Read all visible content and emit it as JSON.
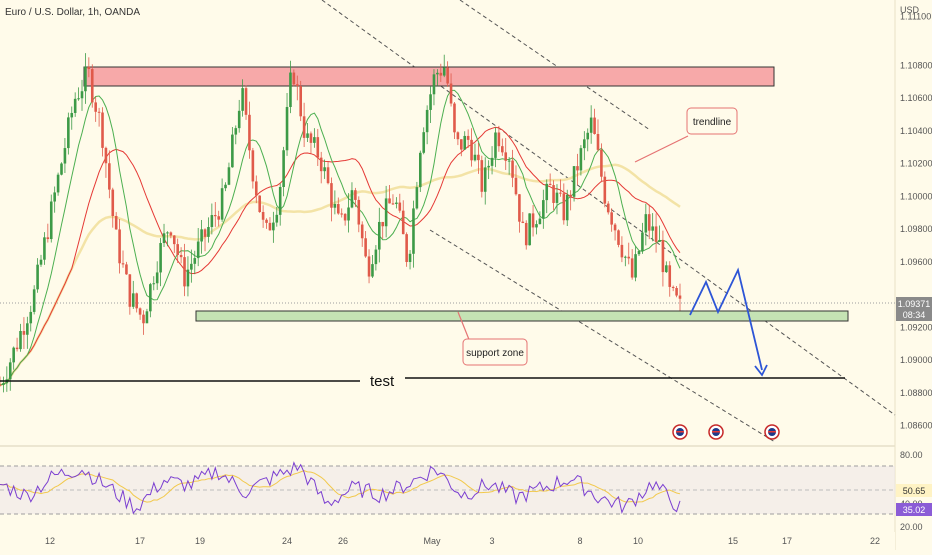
{
  "header": {
    "symbol_title": "Euro / U.S. Dollar, 1h, OANDA",
    "currency": "USD"
  },
  "colors": {
    "background": "#fffbea",
    "bull_candle": "#3d9a47",
    "bear_candle": "#e05a4a",
    "resistance_zone": "#f7a9a9",
    "support_zone": "#c5e3b4",
    "ma_fast": "#4caf50",
    "ma_mid": "#e53935",
    "ma_slow": "#f3e3a6",
    "rsi_line": "#7b3fd1",
    "rsi_signal": "#f2c94c",
    "projection": "#2d55d6",
    "annotation_border": "#e57373",
    "price_badge": "#8a8a8a"
  },
  "price_axis": {
    "ticks": [
      "1.11100",
      "1.10800",
      "1.10600",
      "1.10400",
      "1.10200",
      "1.10000",
      "1.09800",
      "1.09600",
      "1.09200",
      "1.09000",
      "1.08800",
      "1.08600"
    ],
    "current_price": "1.09371",
    "countdown": "08:34"
  },
  "rsi_axis": {
    "ticks": [
      "80.00",
      "40.00",
      "20.00"
    ],
    "value_1": "50.65",
    "value_2": "35.02"
  },
  "time_axis": {
    "ticks": [
      "12",
      "17",
      "19",
      "24",
      "26",
      "May",
      "3",
      "8",
      "10",
      "15",
      "17",
      "22"
    ]
  },
  "annotations": {
    "trendline_label": "trendline",
    "support_label": "support zone",
    "test_label": "test"
  },
  "chart_data": {
    "type": "candlestick",
    "title": "Euro / U.S. Dollar, 1h, OANDA",
    "ylabel": "USD",
    "ylim": [
      1.085,
      1.112
    ],
    "resistance_zone": [
      1.1079,
      1.1092
    ],
    "support_zone": [
      1.0925,
      1.0931
    ],
    "test_level": 1.0889,
    "current_price": 1.09371,
    "price_path": [
      [
        0,
        1.0885
      ],
      [
        0.02,
        1.0905
      ],
      [
        0.05,
        1.094
      ],
      [
        0.08,
        1.1
      ],
      [
        0.11,
        1.106
      ],
      [
        0.13,
        1.1075
      ],
      [
        0.15,
        1.104
      ],
      [
        0.17,
        1.0975
      ],
      [
        0.19,
        1.094
      ],
      [
        0.21,
        1.0925
      ],
      [
        0.23,
        1.096
      ],
      [
        0.25,
        1.0985
      ],
      [
        0.27,
        1.095
      ],
      [
        0.3,
        1.0975
      ],
      [
        0.33,
        1.1
      ],
      [
        0.355,
        1.1065
      ],
      [
        0.37,
        1.102
      ],
      [
        0.39,
        1.0975
      ],
      [
        0.41,
        1.1
      ],
      [
        0.43,
        1.108
      ],
      [
        0.45,
        1.1035
      ],
      [
        0.47,
        1.1025
      ],
      [
        0.5,
        1.098
      ],
      [
        0.52,
        1.1005
      ],
      [
        0.54,
        1.0955
      ],
      [
        0.56,
        1.0985
      ],
      [
        0.58,
        1.1
      ],
      [
        0.6,
        1.096
      ],
      [
        0.62,
        1.104
      ],
      [
        0.64,
        1.1075
      ],
      [
        0.655,
        1.108
      ],
      [
        0.67,
        1.103
      ],
      [
        0.69,
        1.1035
      ],
      [
        0.71,
        1.1005
      ],
      [
        0.73,
        1.104
      ],
      [
        0.75,
        1.1025
      ],
      [
        0.77,
        1.0975
      ],
      [
        0.79,
        1.099
      ],
      [
        0.81,
        1.1005
      ],
      [
        0.83,
        1.099
      ],
      [
        0.85,
        1.102
      ],
      [
        0.87,
        1.1045
      ],
      [
        0.89,
        1.1
      ],
      [
        0.91,
        1.0975
      ],
      [
        0.93,
        1.095
      ],
      [
        0.95,
        1.0985
      ],
      [
        0.97,
        1.097
      ],
      [
        0.985,
        1.094
      ],
      [
        1.0,
        1.0932
      ]
    ],
    "rsi_ylim": [
      20,
      80
    ],
    "rsi_levels": [
      70,
      50,
      30
    ],
    "rsi_path": [
      [
        0,
        55
      ],
      [
        0.04,
        45
      ],
      [
        0.08,
        62
      ],
      [
        0.12,
        68
      ],
      [
        0.16,
        52
      ],
      [
        0.2,
        35
      ],
      [
        0.24,
        58
      ],
      [
        0.28,
        54
      ],
      [
        0.32,
        66
      ],
      [
        0.36,
        48
      ],
      [
        0.4,
        60
      ],
      [
        0.44,
        70
      ],
      [
        0.48,
        38
      ],
      [
        0.52,
        52
      ],
      [
        0.56,
        46
      ],
      [
        0.6,
        55
      ],
      [
        0.64,
        68
      ],
      [
        0.68,
        46
      ],
      [
        0.72,
        55
      ],
      [
        0.76,
        44
      ],
      [
        0.8,
        52
      ],
      [
        0.84,
        60
      ],
      [
        0.88,
        44
      ],
      [
        0.92,
        36
      ],
      [
        0.96,
        56
      ],
      [
        1.0,
        35.02
      ]
    ],
    "rsi_current": [
      50.65,
      35.02
    ]
  }
}
